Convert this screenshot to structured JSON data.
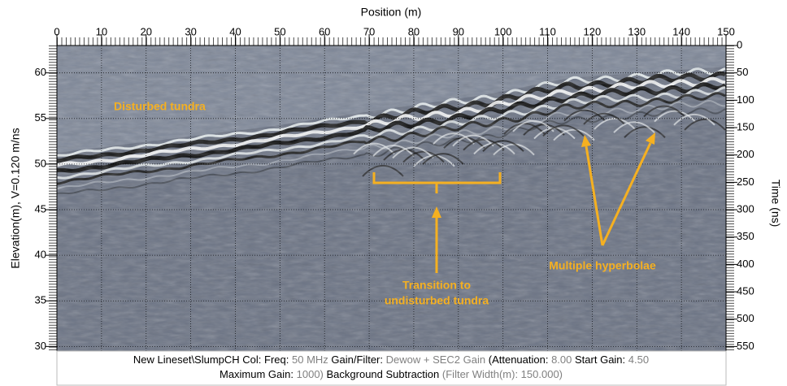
{
  "chart_data": {
    "type": "radargram",
    "x_label": "Position (m)",
    "y_label": "Elevation(m), V=0.120 m/ns",
    "y2_label": "Time (ns)",
    "xlim": [
      0,
      150
    ],
    "xticks": [
      0,
      10,
      20,
      30,
      40,
      50,
      60,
      70,
      80,
      90,
      100,
      110,
      120,
      130,
      140,
      150
    ],
    "ylim": [
      29.5,
      63
    ],
    "yticks": [
      30,
      35,
      40,
      45,
      50,
      55,
      60
    ],
    "y2lim": [
      558.3,
      0
    ],
    "y2ticks": [
      0,
      50,
      100,
      150,
      200,
      250,
      300,
      350,
      400,
      450,
      500,
      550
    ],
    "grid": true,
    "annotations": [
      [
        "Disturbed tundra"
      ],
      [
        "Transition to",
        "undisturbed tundra"
      ],
      [
        "Multiple hyperbolae"
      ]
    ],
    "footer": [
      [
        "New Lineset\\SlumpCH  Col:  Freq:",
        "50 MHz",
        "Gain/Filter:",
        "Dewow + SEC2 Gain",
        "(Attenuation:",
        "8.00",
        "Start Gain:",
        "4.50"
      ],
      [
        "Maximum Gain:",
        "1000)",
        "Background Subtraction",
        "(Filter Width(m): 150.000)"
      ]
    ]
  }
}
